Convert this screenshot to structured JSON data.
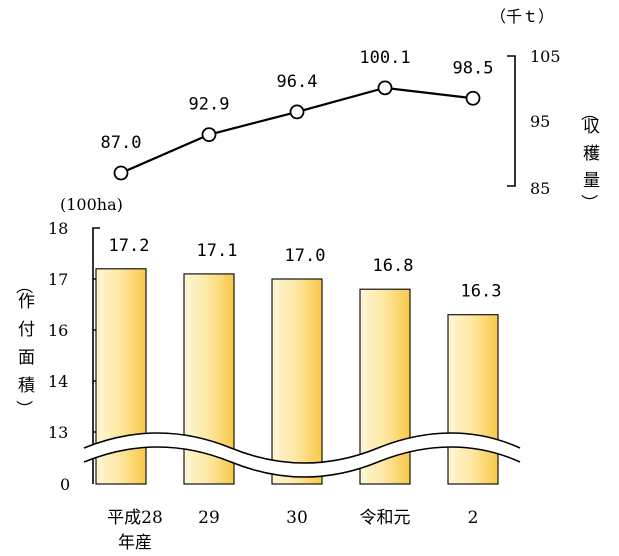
{
  "chart_data": [
    {
      "type": "line",
      "categories": [
        "平成28年産",
        "29",
        "30",
        "令和元",
        "2"
      ],
      "values": [
        87.0,
        92.9,
        96.4,
        100.1,
        98.5
      ],
      "value_labels": [
        "87.0",
        "92.9",
        "96.4",
        "100.1",
        "98.5"
      ],
      "unit": "（千ｔ）",
      "ylabel_chars": [
        "（",
        "収",
        "穫",
        "量",
        "）"
      ],
      "ylim": [
        85,
        105
      ],
      "yticks": [
        "105",
        "95",
        "85"
      ],
      "axis_side": "right",
      "marker": "open-circle",
      "line_color": "#000000"
    },
    {
      "type": "bar",
      "categories": [
        "平成28",
        "29",
        "30",
        "令和元",
        "2"
      ],
      "category_second_line": "年産",
      "values": [
        17.2,
        17.1,
        17.0,
        16.8,
        16.3
      ],
      "value_labels": [
        "17.2",
        "17.1",
        "17.0",
        "16.8",
        "16.3"
      ],
      "unit": "(100ha)",
      "ylabel_chars": [
        "（",
        "作",
        "付",
        "面",
        "積",
        "）"
      ],
      "ylim": [
        0,
        18
      ],
      "axis_break": [
        0,
        13
      ],
      "yticks": [
        "18",
        "17",
        "16",
        "14",
        "13",
        "0"
      ],
      "axis_side": "left",
      "bar_fill": [
        "#fdf6d8",
        "#fbd25c"
      ],
      "bar_stroke": "#000000"
    }
  ]
}
